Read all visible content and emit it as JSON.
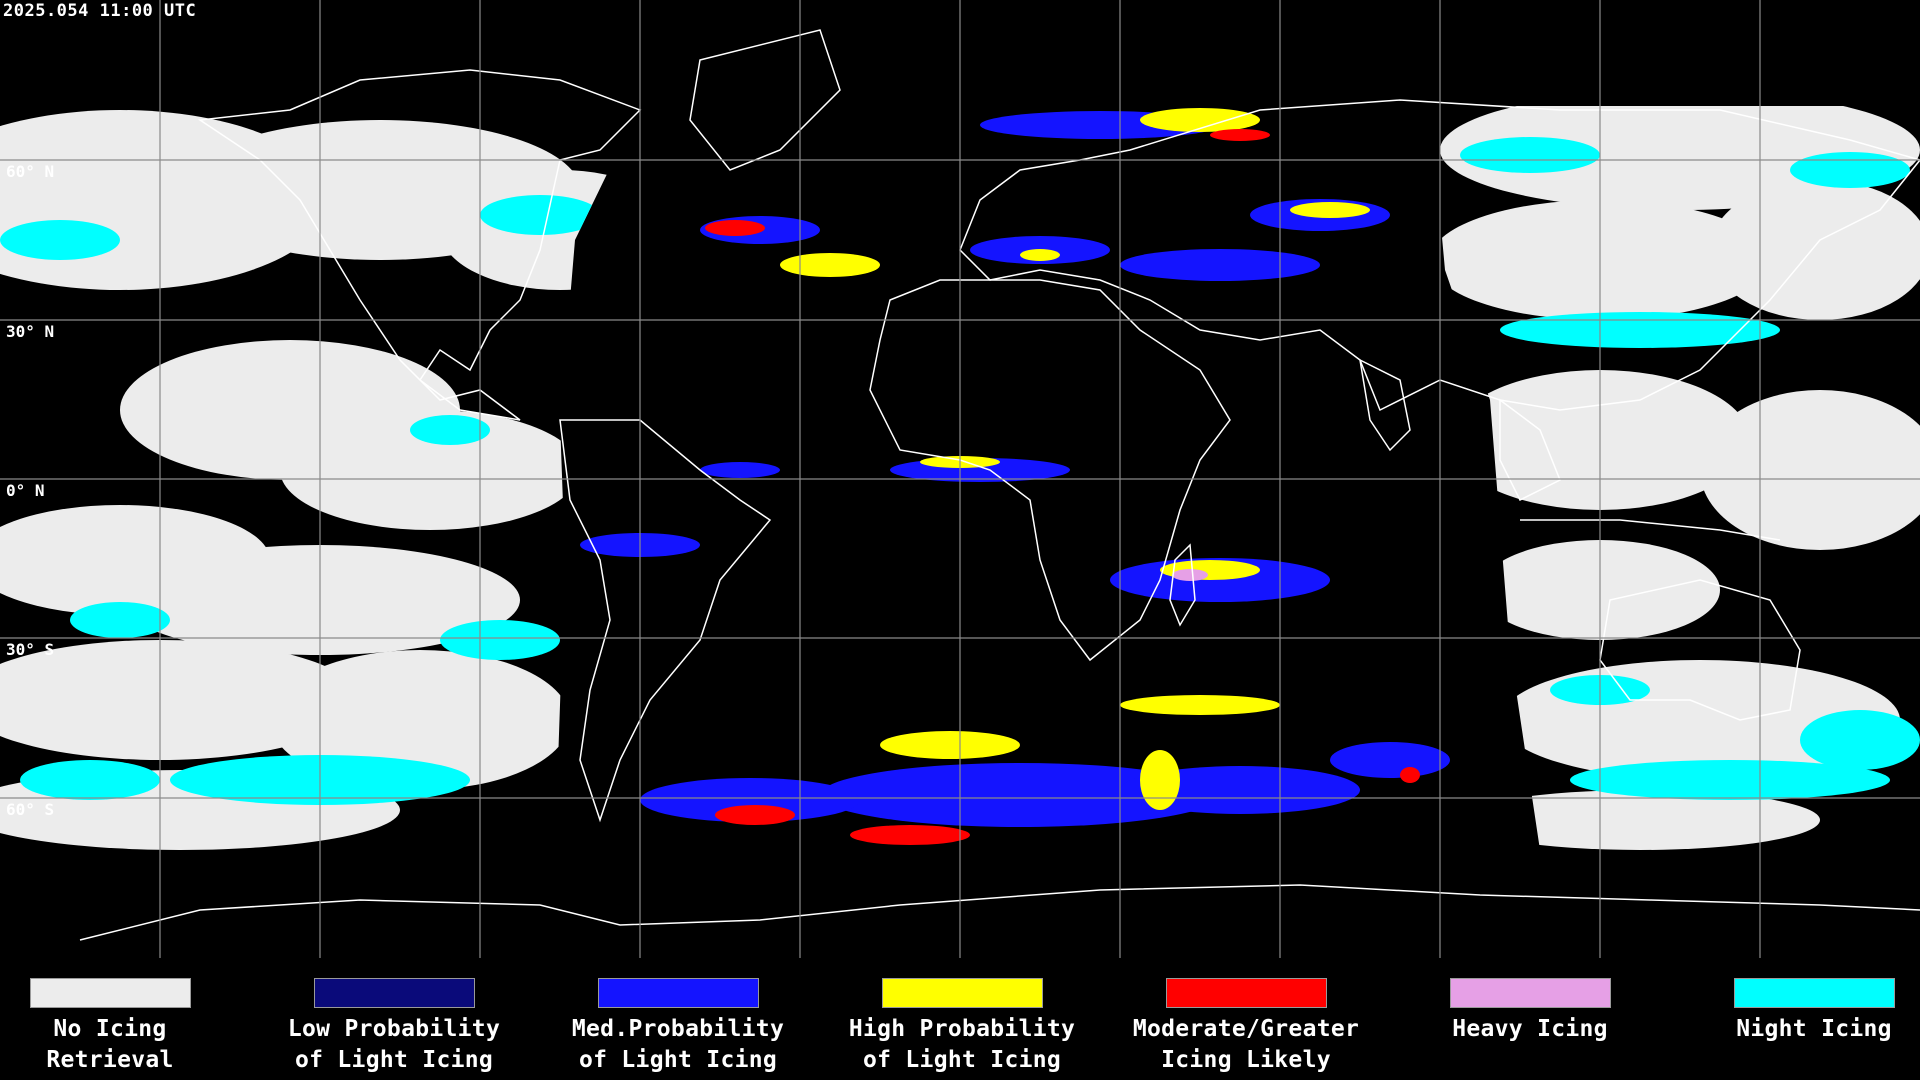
{
  "timestamp": "2025.054 11:00 UTC",
  "latitude_labels": [
    "60° N",
    "30° N",
    "0° N",
    "30° S",
    "60° S"
  ],
  "legend": [
    {
      "label": "No Icing\nRetrieval",
      "color": "#ececec"
    },
    {
      "label": "Low Probability\nof Light Icing",
      "color": "#0a0a7a"
    },
    {
      "label": "Med.Probability\nof Light Icing",
      "color": "#1414ff"
    },
    {
      "label": "High Probability\nof Light Icing",
      "color": "#ffff00"
    },
    {
      "label": "Moderate/Greater\nIcing Likely",
      "color": "#ff0000"
    },
    {
      "label": "Heavy Icing",
      "color": "#e6a0e6"
    },
    {
      "label": "Night Icing",
      "color": "#00ffff"
    }
  ]
}
